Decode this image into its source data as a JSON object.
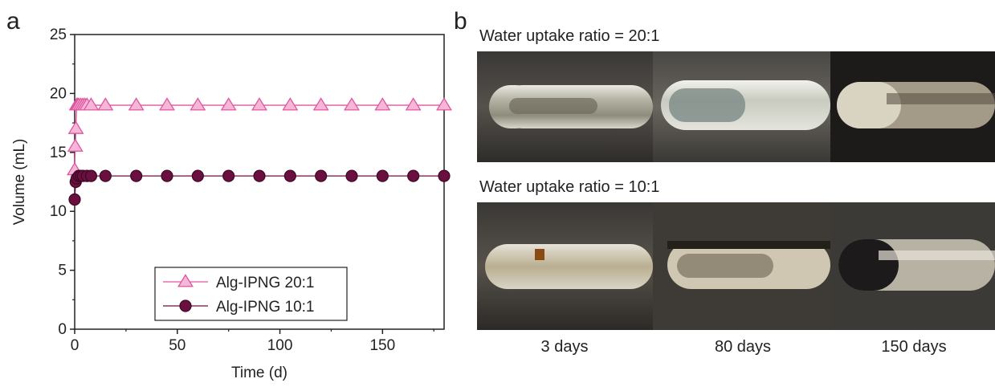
{
  "panel_a": {
    "letter": "a"
  },
  "panel_b": {
    "letter": "b",
    "row1_caption": "Water uptake ratio = 20:1",
    "row2_caption": "Water uptake ratio = 10:1",
    "time_labels": [
      "3 days",
      "80 days",
      "150 days"
    ]
  },
  "chart_data": {
    "type": "line",
    "xlabel": "Time (d)",
    "ylabel": "Volume (mL)",
    "xlim": [
      0,
      180
    ],
    "ylim": [
      0,
      25
    ],
    "xticks": [
      0,
      50,
      100,
      150
    ],
    "yticks": [
      0,
      5,
      10,
      15,
      20,
      25
    ],
    "legend_position": "bottom-center",
    "series": [
      {
        "name": "Alg-IPNG 20:1",
        "marker": "triangle",
        "color": "#e0559f",
        "fill": "#f6b6d8",
        "x": [
          0,
          0.3,
          0.6,
          1,
          1.5,
          2,
          3,
          4,
          5,
          6,
          8,
          15,
          30,
          45,
          60,
          75,
          90,
          105,
          120,
          135,
          150,
          165,
          180
        ],
        "y": [
          13.5,
          15.5,
          17,
          19,
          19,
          19,
          19,
          19,
          19,
          19,
          19,
          19,
          19,
          19,
          19,
          19,
          19,
          19,
          19,
          19,
          19,
          19,
          19
        ]
      },
      {
        "name": "Alg-IPNG 10:1",
        "marker": "circle",
        "color": "#6b0f40",
        "fill": "#6b0f40",
        "x": [
          0,
          0.5,
          1,
          2,
          3,
          4,
          6,
          8,
          15,
          30,
          45,
          60,
          75,
          90,
          105,
          120,
          135,
          150,
          165,
          180
        ],
        "y": [
          11,
          12.5,
          12.8,
          13,
          13,
          13,
          13,
          13,
          13,
          13,
          13,
          13,
          13,
          13,
          13,
          13,
          13,
          13,
          13,
          13
        ]
      }
    ]
  }
}
